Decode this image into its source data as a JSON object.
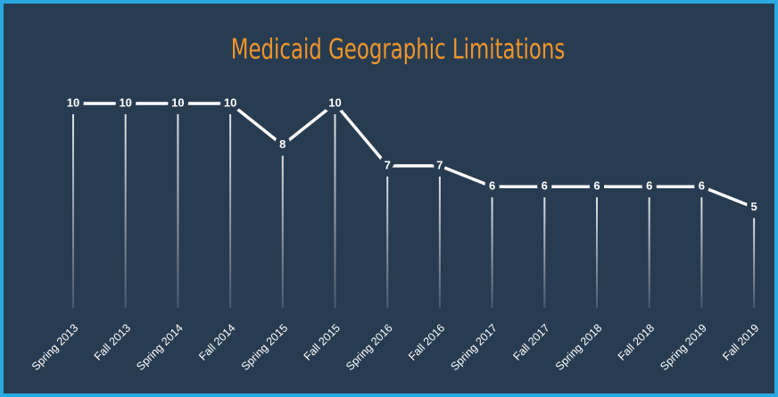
{
  "chart_data": {
    "type": "line",
    "title": "Medicaid Geographic Limitations",
    "categories": [
      "Spring 2013",
      "Fall 2013",
      "Spring 2014",
      "Fall 2014",
      "Spring 2015",
      "Fall 2015",
      "Spring 2016",
      "Fall 2016",
      "Spring 2017",
      "Fall 2017",
      "Spring 2018",
      "Fall 2018",
      "Spring 2019",
      "Fall 2019"
    ],
    "values": [
      10,
      10,
      10,
      10,
      8,
      10,
      7,
      7,
      6,
      6,
      6,
      6,
      6,
      5
    ],
    "color": "#ffffff",
    "ylim": [
      0,
      10
    ]
  }
}
